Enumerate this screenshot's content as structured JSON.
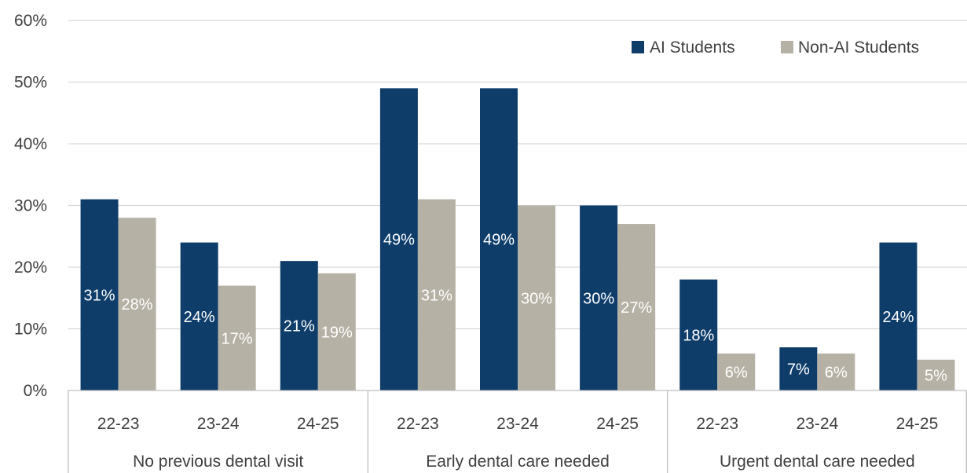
{
  "chart_data": {
    "type": "bar",
    "title": "",
    "xlabel": "",
    "ylabel": "",
    "ylim": [
      0,
      60
    ],
    "y_ticks": [
      "0%",
      "10%",
      "20%",
      "30%",
      "40%",
      "50%",
      "60%"
    ],
    "y_tick_values": [
      0,
      10,
      20,
      30,
      40,
      50,
      60
    ],
    "grid": true,
    "legend_position": "top-right",
    "groups": [
      {
        "label": "No previous dental visit",
        "categories": [
          "22-23",
          "23-24",
          "24-25"
        ]
      },
      {
        "label": "Early dental care needed",
        "categories": [
          "22-23",
          "23-24",
          "24-25"
        ]
      },
      {
        "label": "Urgent dental care needed",
        "categories": [
          "22-23",
          "23-24",
          "24-25"
        ]
      }
    ],
    "series": [
      {
        "name": "AI Students",
        "color": "#0e3d6a",
        "values": [
          31,
          24,
          21,
          49,
          49,
          30,
          18,
          7,
          24
        ],
        "labels": [
          "31%",
          "24%",
          "21%",
          "49%",
          "49%",
          "30%",
          "18%",
          "7%",
          "24%"
        ]
      },
      {
        "name": "Non-AI Students",
        "color": "#b6b1a5",
        "values": [
          28,
          17,
          19,
          31,
          30,
          27,
          6,
          6,
          5
        ],
        "labels": [
          "28%",
          "17%",
          "19%",
          "31%",
          "30%",
          "27%",
          "6%",
          "6%",
          "5%"
        ]
      }
    ]
  }
}
